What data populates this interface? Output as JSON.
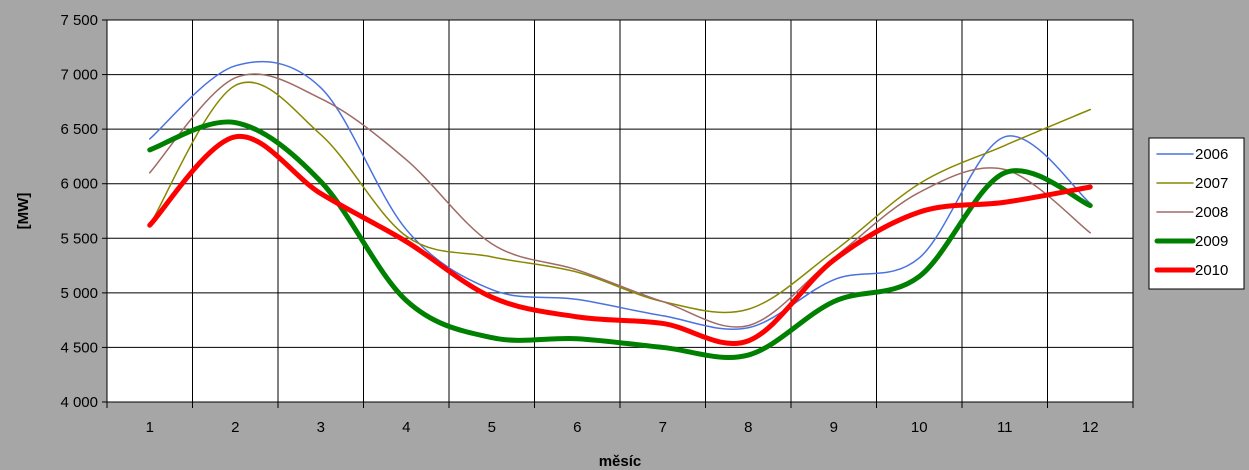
{
  "chart_data": {
    "type": "line",
    "title": "",
    "xlabel": "měsíc",
    "ylabel": "[MW]",
    "categories": [
      "1",
      "2",
      "3",
      "4",
      "5",
      "6",
      "7",
      "8",
      "9",
      "10",
      "11",
      "12"
    ],
    "ylim": [
      4000,
      7500
    ],
    "yticks": [
      4000,
      4500,
      5000,
      5500,
      6000,
      6500,
      7000,
      7500
    ],
    "ytick_labels": [
      "4 000",
      "4 500",
      "5 000",
      "5 500",
      "6 000",
      "6 500",
      "7 000",
      "7 500"
    ],
    "grid": true,
    "smooth": true,
    "legend_position": "right",
    "colors": {
      "background": "#a6a6a6",
      "plot_area": "#ffffff",
      "grid": "#000000"
    },
    "series": [
      {
        "name": "2006",
        "color": "#4a72e0",
        "width": "thin",
        "values": [
          6410,
          7080,
          6880,
          5580,
          5030,
          4940,
          4790,
          4680,
          5120,
          5320,
          6430,
          5820
        ]
      },
      {
        "name": "2007",
        "color": "#888800",
        "width": "thin",
        "values": [
          5620,
          6900,
          6450,
          5520,
          5330,
          5190,
          4920,
          4850,
          5380,
          6000,
          6350,
          6680
        ]
      },
      {
        "name": "2008",
        "color": "#a06a66",
        "width": "thin",
        "values": [
          6100,
          6970,
          6780,
          6220,
          5450,
          5210,
          4920,
          4700,
          5320,
          5920,
          6130,
          5550
        ]
      },
      {
        "name": "2009",
        "color": "#008000",
        "width": "thick",
        "values": [
          6310,
          6560,
          6020,
          4930,
          4590,
          4580,
          4500,
          4430,
          4920,
          5150,
          6100,
          5800
        ]
      },
      {
        "name": "2010",
        "color": "#ff0000",
        "width": "thick",
        "values": [
          5620,
          6430,
          5910,
          5470,
          4960,
          4780,
          4720,
          4560,
          5300,
          5740,
          5830,
          5970
        ]
      }
    ]
  }
}
